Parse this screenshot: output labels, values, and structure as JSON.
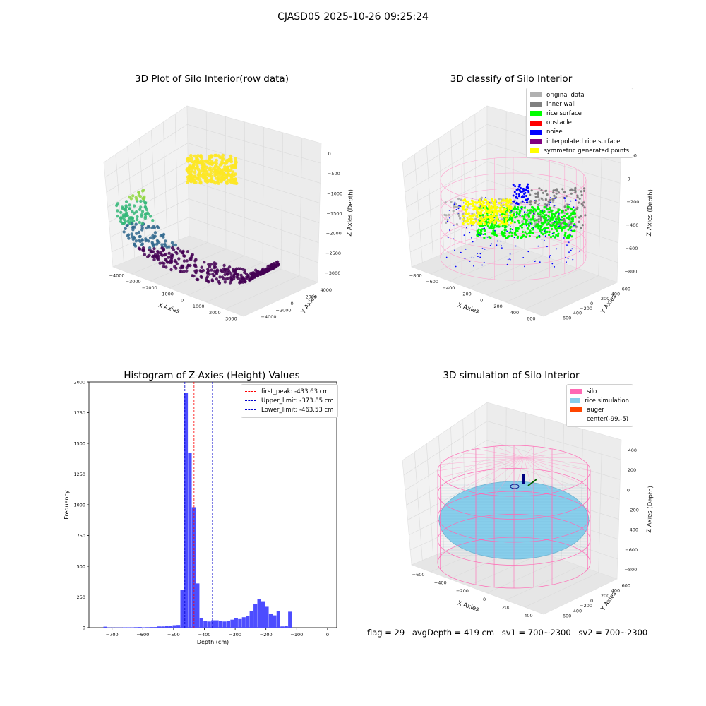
{
  "suptitle": "CJASD05 2025-10-26 09:25:24",
  "panels": {
    "raw": {
      "title": "3D Plot of Silo Interior(row data)"
    },
    "classify": {
      "title": "3D classify of Silo Interior"
    },
    "hist": {
      "title": "Histogram of Z-Axies (Height) Values"
    },
    "sim": {
      "title": "3D simulation of Silo Interior"
    }
  },
  "chart_data": [
    {
      "type": "scatter",
      "panel": "raw",
      "title": "3D Plot of Silo Interior(row data)",
      "xlabel": "X Axies",
      "ylabel": "Y Axies",
      "zlabel": "Z Axies (Depth)",
      "xticks": [
        "−4000",
        "−3000",
        "−2000",
        "−1000",
        "0",
        "1000",
        "2000",
        "3000"
      ],
      "yticks": [
        "−4000",
        "−2000",
        "0",
        "2000",
        "4000"
      ],
      "zticks": [
        "0",
        "−500",
        "−1000",
        "−1500",
        "−2000",
        "−2500",
        "−3000"
      ],
      "xlim": [
        -4500,
        3000
      ],
      "ylim": [
        -4500,
        4500
      ],
      "zlim": [
        -3200,
        0
      ],
      "colormap": [
        "#440154",
        "#31688e",
        "#35b779",
        "#90d743",
        "#fde725"
      ]
    },
    {
      "type": "scatter",
      "panel": "classify",
      "title": "3D classify of Silo Interior",
      "xlabel": "X Axies",
      "ylabel": "Y Axies",
      "zlabel": "Z Axies (Depth)",
      "xticks": [
        "−800",
        "−600",
        "−400",
        "−200",
        "0",
        "200",
        "400",
        "600"
      ],
      "yticks": [
        "−600",
        "−400",
        "−200",
        "0",
        "200",
        "400",
        "600"
      ],
      "zticks": [
        "200",
        "0",
        "−200",
        "−400",
        "−600",
        "−800"
      ],
      "legend": [
        {
          "label": "original data",
          "color": "#b0b0b0"
        },
        {
          "label": "inner wall",
          "color": "#808080"
        },
        {
          "label": "rice surface",
          "color": "#00ff00"
        },
        {
          "label": "obstacle",
          "color": "#ff0000"
        },
        {
          "label": "noise",
          "color": "#0000ff"
        },
        {
          "label": "interpolated rice surface",
          "color": "#800080"
        },
        {
          "label": "symmetric generated points",
          "color": "#ffff00"
        }
      ]
    },
    {
      "type": "bar",
      "panel": "hist",
      "title": "Histogram of Z-Axies (Height) Values",
      "xlabel": "Depth (cm)",
      "ylabel": "Frequency",
      "xlim": [
        -775,
        30
      ],
      "ylim": [
        0,
        2000
      ],
      "xticks": [
        -700,
        -600,
        -500,
        -400,
        -300,
        -200,
        -100,
        0
      ],
      "xtick_labels": [
        "−700",
        "−600",
        "−500",
        "−400",
        "−300",
        "−200",
        "−100",
        "0"
      ],
      "yticks": [
        0,
        250,
        500,
        750,
        1000,
        1250,
        1500,
        1750,
        2000
      ],
      "bar_color": "#4d4dff",
      "bin_start": -728,
      "bin_width": 12.5,
      "values": [
        8,
        2,
        2,
        2,
        2,
        3,
        3,
        3,
        4,
        5,
        3,
        4,
        5,
        5,
        10,
        10,
        14,
        17,
        20,
        22,
        310,
        1910,
        1420,
        980,
        360,
        80,
        55,
        50,
        60,
        60,
        55,
        50,
        55,
        65,
        80,
        70,
        85,
        95,
        135,
        190,
        235,
        215,
        170,
        115,
        100,
        135,
        10,
        15,
        130
      ],
      "vlines": [
        {
          "x": -433.63,
          "color": "#ff0000",
          "label": "first_peak: -433.63 cm"
        },
        {
          "x": -373.85,
          "color": "#0000cc",
          "label": "Upper_limit: -373.85 cm"
        },
        {
          "x": -463.53,
          "color": "#0000cc",
          "label": "Lower_limit: -463.53 cm"
        }
      ]
    },
    {
      "type": "scatter",
      "panel": "sim",
      "title": "3D simulation of Silo Interior",
      "xlabel": "X Axies",
      "ylabel": "Y Axies",
      "zlabel": "Z Axies (Depth)",
      "xticks": [
        "−600",
        "−400",
        "−200",
        "0",
        "200",
        "400"
      ],
      "yticks": [
        "−600",
        "−400",
        "−200",
        "0",
        "200",
        "400",
        "600"
      ],
      "zticks": [
        "400",
        "200",
        "0",
        "−200",
        "−400",
        "−600",
        "−800"
      ],
      "legend": [
        {
          "label": "silo",
          "color": "#ff69b4"
        },
        {
          "label": "rice simulation",
          "color": "#87ceeb"
        },
        {
          "label": "auger",
          "color": "#ff4500"
        },
        {
          "label": "center(-99,-5)",
          "color": ""
        }
      ]
    }
  ],
  "footer": {
    "flag": "flag = 29",
    "avg": "avgDepth = 419 cm",
    "sv1": "sv1 = 700~2300",
    "sv2": "sv2 = 700~2300"
  }
}
